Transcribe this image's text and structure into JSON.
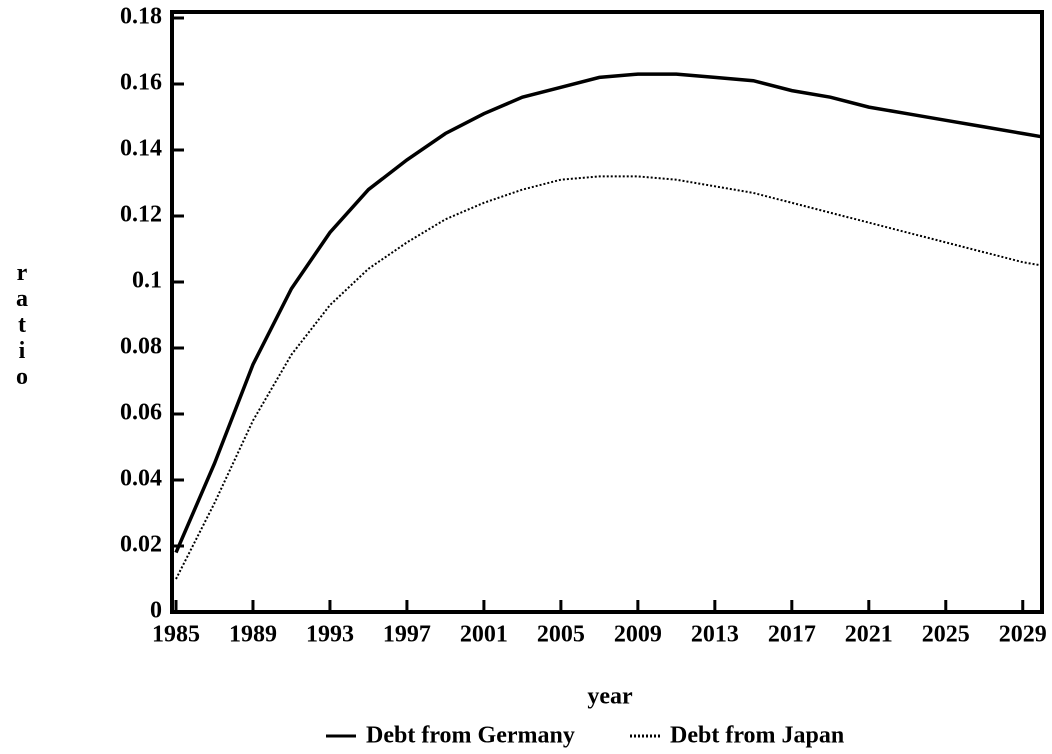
{
  "chart_data": {
    "type": "line",
    "x_label": "year",
    "y_label": "ratio",
    "x": [
      1985,
      1987,
      1989,
      1991,
      1993,
      1995,
      1997,
      1999,
      2001,
      2003,
      2005,
      2007,
      2009,
      2011,
      2013,
      2015,
      2017,
      2019,
      2021,
      2023,
      2025,
      2027,
      2029,
      2030
    ],
    "series": [
      {
        "name": "Debt from Germany",
        "color": "#000000",
        "dash": "solid",
        "values": [
          0.018,
          0.045,
          0.075,
          0.098,
          0.115,
          0.128,
          0.137,
          0.145,
          0.151,
          0.156,
          0.159,
          0.162,
          0.163,
          0.163,
          0.162,
          0.161,
          0.158,
          0.156,
          0.153,
          0.151,
          0.149,
          0.147,
          0.145,
          0.144
        ]
      },
      {
        "name": "Debt from Japan",
        "color": "#000000",
        "dash": "dotted",
        "values": [
          0.01,
          0.033,
          0.058,
          0.078,
          0.093,
          0.104,
          0.112,
          0.119,
          0.124,
          0.128,
          0.131,
          0.132,
          0.132,
          0.131,
          0.129,
          0.127,
          0.124,
          0.121,
          0.118,
          0.115,
          0.112,
          0.109,
          0.106,
          0.105
        ]
      }
    ],
    "xlim": [
      1985,
      2030
    ],
    "xticks": [
      1985,
      1989,
      1993,
      1997,
      2001,
      2005,
      2009,
      2013,
      2017,
      2021,
      2025,
      2029
    ],
    "ylim": [
      0,
      0.18
    ],
    "yticks": [
      0,
      0.02,
      0.04,
      0.06,
      0.08,
      0.1,
      0.12,
      0.14,
      0.16,
      0.18
    ],
    "grid": false,
    "legend": "bottom"
  }
}
